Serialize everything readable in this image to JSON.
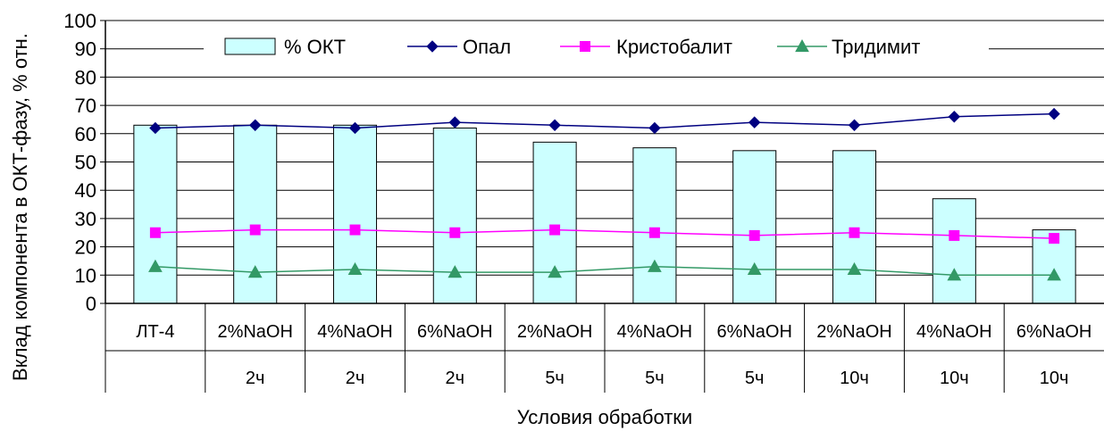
{
  "chart_data": {
    "type": "bar",
    "title": "",
    "xlabel": "Условия обработки",
    "ylabel": "Вклад компонента в ОКТ-фазу, % отн.",
    "ylim": [
      0,
      100
    ],
    "yticks": [
      0,
      10,
      20,
      30,
      40,
      50,
      60,
      70,
      80,
      90,
      100
    ],
    "grid": true,
    "legend_position": "top",
    "categories": [
      {
        "line1": "ЛТ-4",
        "line2": ""
      },
      {
        "line1": "2%NaOH",
        "line2": "2ч"
      },
      {
        "line1": "4%NaOH",
        "line2": "2ч"
      },
      {
        "line1": "6%NaOH",
        "line2": "2ч"
      },
      {
        "line1": "2%NaOH",
        "line2": "5ч"
      },
      {
        "line1": "4%NaOH",
        "line2": "5ч"
      },
      {
        "line1": "6%NaOH",
        "line2": "5ч"
      },
      {
        "line1": "2%NaOH",
        "line2": "10ч"
      },
      {
        "line1": "4%NaOH",
        "line2": "10ч"
      },
      {
        "line1": "6%NaOH",
        "line2": "10ч"
      }
    ],
    "series": [
      {
        "name": "% ОКТ",
        "kind": "bar",
        "color": "#CCFFFF",
        "stroke": "#000000",
        "values": [
          63,
          63,
          63,
          62,
          57,
          55,
          54,
          54,
          37,
          26
        ]
      },
      {
        "name": "Опал",
        "kind": "line",
        "marker": "diamond",
        "color": "#000080",
        "values": [
          62,
          63,
          62,
          64,
          63,
          62,
          64,
          63,
          66,
          67
        ]
      },
      {
        "name": "Кристобалит",
        "kind": "line",
        "marker": "square",
        "color": "#FF00FF",
        "values": [
          25,
          26,
          26,
          25,
          26,
          25,
          24,
          25,
          24,
          23
        ]
      },
      {
        "name": "Тридимит",
        "kind": "line",
        "marker": "triangle",
        "color": "#339966",
        "values": [
          13,
          11,
          12,
          11,
          11,
          13,
          12,
          12,
          10,
          10
        ]
      }
    ]
  }
}
